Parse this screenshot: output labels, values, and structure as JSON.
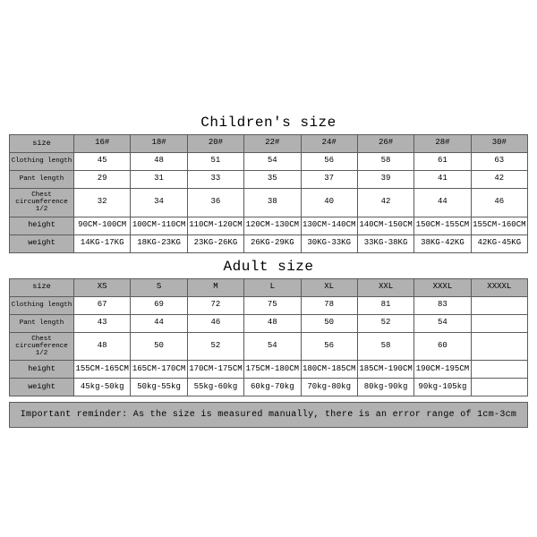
{
  "colors": {
    "header_bg": "#b1b1b1",
    "border": "#5c5c5c",
    "page_bg": "#ffffff",
    "text": "#000000"
  },
  "children": {
    "title": "Children's size",
    "row_labels": [
      "size",
      "Clothing length",
      "Pant length",
      "Chest circumference 1/2",
      "height",
      "weight"
    ],
    "sizes": [
      "16#",
      "18#",
      "20#",
      "22#",
      "24#",
      "26#",
      "28#",
      "30#"
    ],
    "clothing_length": [
      "45",
      "48",
      "51",
      "54",
      "56",
      "58",
      "61",
      "63"
    ],
    "pant_length": [
      "29",
      "31",
      "33",
      "35",
      "37",
      "39",
      "41",
      "42"
    ],
    "chest": [
      "32",
      "34",
      "36",
      "38",
      "40",
      "42",
      "44",
      "46"
    ],
    "height": [
      "90CM-100CM",
      "100CM-110CM",
      "110CM-120CM",
      "120CM-130CM",
      "130CM-140CM",
      "140CM-150CM",
      "150CM-155CM",
      "155CM-160CM"
    ],
    "weight": [
      "14KG-17KG",
      "18KG-23KG",
      "23KG-26KG",
      "26KG-29KG",
      "30KG-33KG",
      "33KG-38KG",
      "38KG-42KG",
      "42KG-45KG"
    ]
  },
  "adult": {
    "title": "Adult size",
    "row_labels": [
      "size",
      "Clothing length",
      "Pant length",
      "Chest circumference 1/2",
      "height",
      "weight"
    ],
    "sizes": [
      "XS",
      "S",
      "M",
      "L",
      "XL",
      "XXL",
      "XXXL",
      "XXXXL"
    ],
    "clothing_length": [
      "67",
      "69",
      "72",
      "75",
      "78",
      "81",
      "83",
      ""
    ],
    "pant_length": [
      "43",
      "44",
      "46",
      "48",
      "50",
      "52",
      "54",
      ""
    ],
    "chest": [
      "48",
      "50",
      "52",
      "54",
      "56",
      "58",
      "60",
      ""
    ],
    "height": [
      "155CM-165CM",
      "165CM-170CM",
      "170CM-175CM",
      "175CM-180CM",
      "180CM-185CM",
      "185CM-190CM",
      "190CM-195CM",
      ""
    ],
    "weight": [
      "45kg-50kg",
      "50kg-55kg",
      "55kg-60kg",
      "60kg-70kg",
      "70kg-80kg",
      "80kg-90kg",
      "90kg-105kg",
      ""
    ]
  },
  "reminder": "Important reminder: As the size is measured manually, there is an error range of 1cm-3cm"
}
